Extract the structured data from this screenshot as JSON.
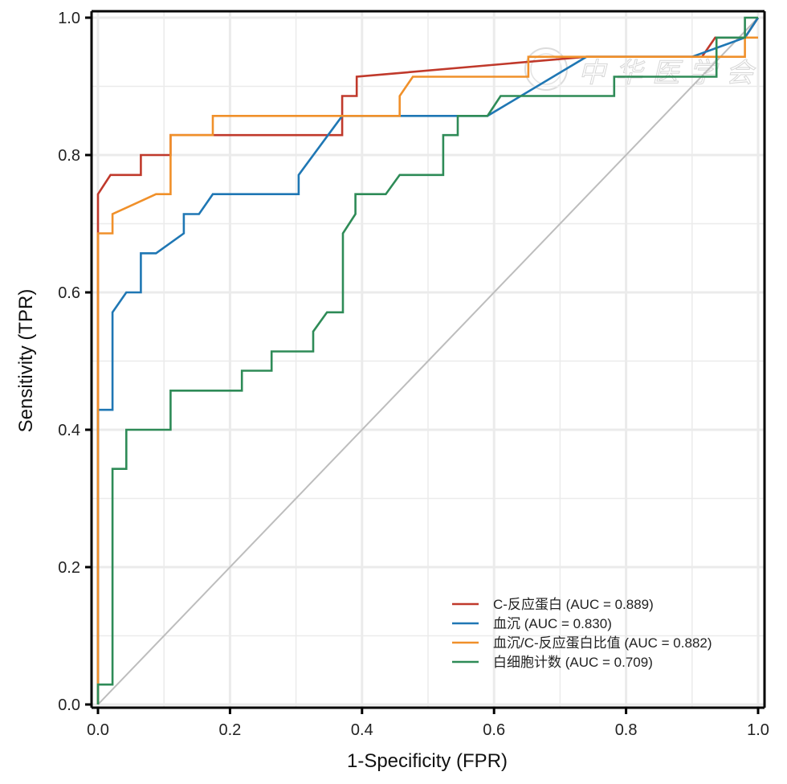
{
  "chart_data": {
    "type": "line",
    "subtype": "roc",
    "title": "",
    "xlabel": "1-Specificity (FPR)",
    "ylabel": "Sensitivity (TPR)",
    "xlim": [
      0,
      1
    ],
    "ylim": [
      0,
      1
    ],
    "grid": true,
    "x_ticks": [
      "0.0",
      "0.2",
      "0.4",
      "0.6",
      "0.8",
      "1.0"
    ],
    "y_ticks": [
      "0.0",
      "0.2",
      "0.4",
      "0.6",
      "0.8",
      "1.0"
    ],
    "x_tick_values": [
      0,
      0.2,
      0.4,
      0.6,
      0.8,
      1.0
    ],
    "y_tick_values": [
      0,
      0.2,
      0.4,
      0.6,
      0.8,
      1.0
    ],
    "legend_position": "bottom-right",
    "reference_line": {
      "name": "chance",
      "points": [
        [
          0,
          0
        ],
        [
          1,
          1
        ]
      ],
      "color": "#bdbdbd"
    },
    "watermark": "中华医学会",
    "series": [
      {
        "name": "C-反应蛋白 (AUC = 0.889)",
        "label": "C-反应蛋白",
        "auc": 0.889,
        "color": "#c0392b",
        "points": [
          [
            0,
            0
          ],
          [
            0,
            0.743
          ],
          [
            0.019,
            0.771
          ],
          [
            0.065,
            0.771
          ],
          [
            0.065,
            0.8
          ],
          [
            0.11,
            0.8
          ],
          [
            0.11,
            0.829
          ],
          [
            0.37,
            0.829
          ],
          [
            0.37,
            0.886
          ],
          [
            0.392,
            0.886
          ],
          [
            0.392,
            0.914
          ],
          [
            0.74,
            0.943
          ],
          [
            0.915,
            0.943
          ],
          [
            0.935,
            0.971
          ],
          [
            0.98,
            0.971
          ],
          [
            1,
            1
          ]
        ]
      },
      {
        "name": "血沉 (AUC = 0.830)",
        "label": "血沉",
        "auc": 0.83,
        "color": "#1f77b4",
        "points": [
          [
            0,
            0
          ],
          [
            0,
            0.429
          ],
          [
            0.022,
            0.429
          ],
          [
            0.022,
            0.571
          ],
          [
            0.043,
            0.6
          ],
          [
            0.065,
            0.6
          ],
          [
            0.065,
            0.657
          ],
          [
            0.088,
            0.657
          ],
          [
            0.13,
            0.686
          ],
          [
            0.13,
            0.714
          ],
          [
            0.153,
            0.714
          ],
          [
            0.174,
            0.743
          ],
          [
            0.304,
            0.743
          ],
          [
            0.304,
            0.771
          ],
          [
            0.37,
            0.857
          ],
          [
            0.59,
            0.857
          ],
          [
            0.74,
            0.943
          ],
          [
            0.9,
            0.943
          ],
          [
            0.98,
            0.971
          ],
          [
            1,
            1
          ]
        ]
      },
      {
        "name": "血沉/C-反应蛋白比值 (AUC = 0.882)",
        "label": "血沉/C-反应蛋白比值",
        "auc": 0.882,
        "color": "#f0902a",
        "points": [
          [
            0,
            0
          ],
          [
            0,
            0.686
          ],
          [
            0.022,
            0.686
          ],
          [
            0.022,
            0.714
          ],
          [
            0.088,
            0.743
          ],
          [
            0.11,
            0.743
          ],
          [
            0.11,
            0.829
          ],
          [
            0.174,
            0.829
          ],
          [
            0.174,
            0.857
          ],
          [
            0.457,
            0.857
          ],
          [
            0.457,
            0.886
          ],
          [
            0.477,
            0.914
          ],
          [
            0.652,
            0.914
          ],
          [
            0.652,
            0.943
          ],
          [
            0.98,
            0.943
          ],
          [
            0.98,
            0.971
          ],
          [
            1,
            0.971
          ]
        ]
      },
      {
        "name": "白细胞计数 (AUC = 0.709)",
        "label": "白细胞计数",
        "auc": 0.709,
        "color": "#2e8b57",
        "points": [
          [
            0,
            0
          ],
          [
            0,
            0.029
          ],
          [
            0.022,
            0.029
          ],
          [
            0.022,
            0.343
          ],
          [
            0.043,
            0.343
          ],
          [
            0.043,
            0.4
          ],
          [
            0.11,
            0.4
          ],
          [
            0.11,
            0.457
          ],
          [
            0.218,
            0.457
          ],
          [
            0.218,
            0.486
          ],
          [
            0.263,
            0.486
          ],
          [
            0.263,
            0.514
          ],
          [
            0.326,
            0.514
          ],
          [
            0.326,
            0.543
          ],
          [
            0.347,
            0.571
          ],
          [
            0.371,
            0.571
          ],
          [
            0.371,
            0.686
          ],
          [
            0.39,
            0.714
          ],
          [
            0.39,
            0.743
          ],
          [
            0.436,
            0.743
          ],
          [
            0.457,
            0.771
          ],
          [
            0.523,
            0.771
          ],
          [
            0.523,
            0.829
          ],
          [
            0.545,
            0.829
          ],
          [
            0.545,
            0.857
          ],
          [
            0.59,
            0.857
          ],
          [
            0.61,
            0.886
          ],
          [
            0.782,
            0.886
          ],
          [
            0.782,
            0.914
          ],
          [
            0.937,
            0.914
          ],
          [
            0.937,
            0.971
          ],
          [
            0.98,
            0.971
          ],
          [
            0.98,
            1
          ],
          [
            1,
            1
          ]
        ]
      }
    ]
  }
}
